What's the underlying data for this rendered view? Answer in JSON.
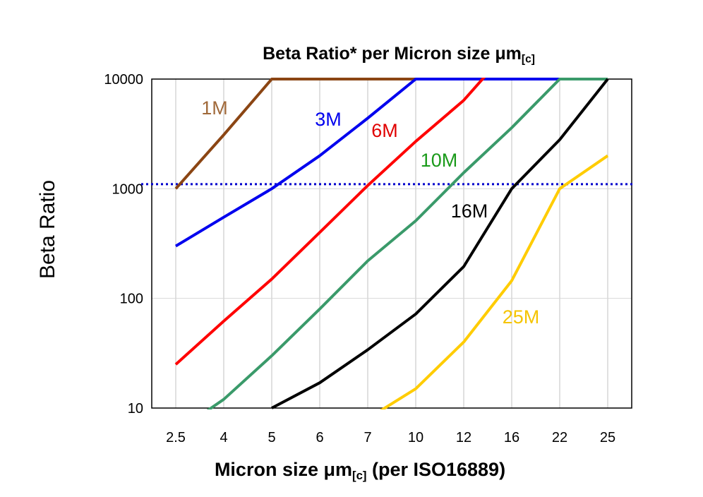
{
  "chart_data": {
    "type": "line",
    "title": "Beta Ratio* per Micron size μm",
    "title_sub": "[c]",
    "xlabel_pre": "Micron size μm",
    "xlabel_sub": "[c]",
    "xlabel_post": " (per ISO16889)",
    "ylabel": "Beta Ratio",
    "yscale": "log",
    "ylim": [
      10,
      10000
    ],
    "yticks": [
      "10",
      "100",
      "1000",
      "10000"
    ],
    "categories": [
      "2.5",
      "4",
      "5",
      "6",
      "7",
      "10",
      "12",
      "16",
      "22",
      "25"
    ],
    "grid": true,
    "reference_line": {
      "value": 1100,
      "color": "#0000CC",
      "style": "dotted"
    },
    "series": [
      {
        "name": "1M",
        "color": "#8B4513",
        "label_color": "#A0693A",
        "values": [
          1000,
          3100,
          10000,
          10000,
          10000,
          10000,
          null,
          null,
          null,
          null
        ]
      },
      {
        "name": "3M",
        "color": "#0000EE",
        "label_color": "#0000EE",
        "values": [
          300,
          550,
          1000,
          2000,
          4400,
          10000,
          10000,
          10000,
          10000,
          null
        ]
      },
      {
        "name": "6M",
        "color": "#FF0000",
        "label_color": "#E00000",
        "values": [
          25,
          62,
          150,
          400,
          1070,
          2700,
          6400,
          20000,
          null,
          null
        ]
      },
      {
        "name": "10M",
        "color": "#3A9A6A",
        "label_color": "#1A9A1A",
        "values": [
          6,
          12,
          30,
          80,
          220,
          510,
          1400,
          3600,
          10000,
          10000
        ]
      },
      {
        "name": "16M",
        "color": "#000000",
        "label_color": "#000000",
        "values": [
          null,
          null,
          10,
          17,
          34,
          72,
          195,
          1000,
          2800,
          10000
        ]
      },
      {
        "name": "25M",
        "color": "#FFCC00",
        "label_color": "#F5C400",
        "values": [
          null,
          null,
          null,
          null,
          8,
          15,
          40,
          145,
          1000,
          2000
        ]
      }
    ]
  }
}
